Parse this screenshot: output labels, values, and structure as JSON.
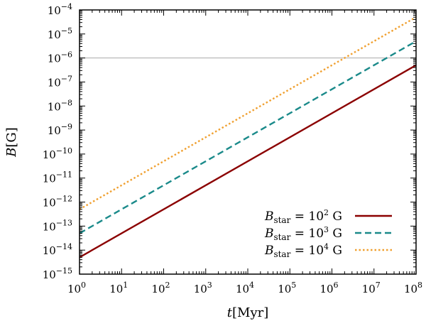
{
  "chart_data": {
    "type": "line",
    "title": "",
    "xlabel": "t[Myr]",
    "ylabel": "B[G]",
    "xscale": "log",
    "yscale": "log",
    "xlim": [
      1,
      100000000
    ],
    "ylim": [
      1e-15,
      0.0001
    ],
    "x_tick_labels": [
      {
        "base": "10",
        "exp": "0"
      },
      {
        "base": "10",
        "exp": "1"
      },
      {
        "base": "10",
        "exp": "2"
      },
      {
        "base": "10",
        "exp": "3"
      },
      {
        "base": "10",
        "exp": "4"
      },
      {
        "base": "10",
        "exp": "5"
      },
      {
        "base": "10",
        "exp": "6"
      },
      {
        "base": "10",
        "exp": "7"
      },
      {
        "base": "10",
        "exp": "8"
      }
    ],
    "y_tick_labels": [
      {
        "base": "10",
        "exp": "−15"
      },
      {
        "base": "10",
        "exp": "−14"
      },
      {
        "base": "10",
        "exp": "−13"
      },
      {
        "base": "10",
        "exp": "−12"
      },
      {
        "base": "10",
        "exp": "−11"
      },
      {
        "base": "10",
        "exp": "−10"
      },
      {
        "base": "10",
        "exp": "−9"
      },
      {
        "base": "10",
        "exp": "−8"
      },
      {
        "base": "10",
        "exp": "−7"
      },
      {
        "base": "10",
        "exp": "−6"
      },
      {
        "base": "10",
        "exp": "−5"
      },
      {
        "base": "10",
        "exp": "−4"
      }
    ],
    "reference_line": {
      "y": 1e-06,
      "color": "#aaaaaa"
    },
    "legend_position": "bottom-right",
    "series": [
      {
        "name": "B_star = 10^2 G",
        "label_main": "B",
        "label_sub": "star",
        "label_eq": " = 10",
        "label_exp": "2",
        "label_unit": " G",
        "x": [
          1,
          100000000
        ],
        "y": [
          5e-15,
          5e-07
        ],
        "color": "#8b0000",
        "style": "solid"
      },
      {
        "name": "B_star = 10^3 G",
        "label_main": "B",
        "label_sub": "star",
        "label_eq": " = 10",
        "label_exp": "3",
        "label_unit": " G",
        "x": [
          1,
          100000000
        ],
        "y": [
          5e-14,
          5e-06
        ],
        "color": "#1a8a8a",
        "style": "dashed"
      },
      {
        "name": "B_star = 10^4 G",
        "label_main": "B",
        "label_sub": "star",
        "label_eq": " = 10",
        "label_exp": "4",
        "label_unit": " G",
        "x": [
          1,
          100000000
        ],
        "y": [
          5e-13,
          5e-05
        ],
        "color": "#f0a030",
        "style": "dotted"
      }
    ]
  }
}
